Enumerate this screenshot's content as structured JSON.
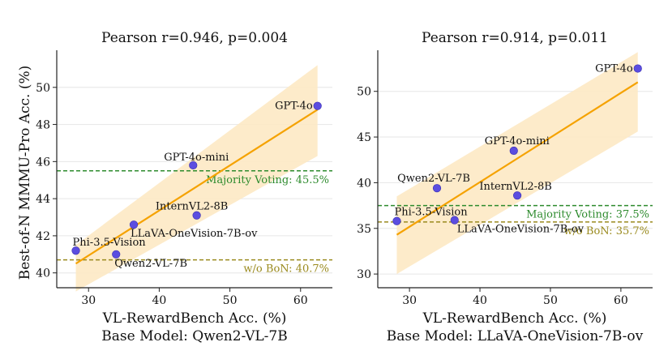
{
  "ylabel_shared": "Best-of-N MMMU-Pro Acc. (%)",
  "chart_data": [
    {
      "type": "scatter",
      "title": "Pearson r=0.946, p=0.004",
      "xlabel": "VL-RewardBench Acc. (%)",
      "subtitle": "Base Model: Qwen2-VL-7B",
      "xlim": [
        25.5,
        64.5
      ],
      "ylim": [
        39.2,
        52.0
      ],
      "xticks": [
        30,
        40,
        50,
        60
      ],
      "yticks": [
        40,
        42,
        44,
        46,
        48,
        50
      ],
      "grid": "horizontal",
      "points": [
        {
          "label": "GPT-4o",
          "x": 62.4,
          "y": 49.0
        },
        {
          "label": "GPT-4o-mini",
          "x": 44.8,
          "y": 45.8
        },
        {
          "label": "InternVL2-8B",
          "x": 45.3,
          "y": 43.1
        },
        {
          "label": "LLaVA-OneVision-7B-ov",
          "x": 36.4,
          "y": 42.6
        },
        {
          "label": "Phi-3.5-Vision",
          "x": 28.2,
          "y": 41.2
        },
        {
          "label": "Qwen2-VL-7B",
          "x": 33.9,
          "y": 41.0
        }
      ],
      "fit_line": {
        "x": [
          28.2,
          62.4
        ],
        "y": [
          40.5,
          48.8
        ]
      },
      "band": {
        "x": [
          28.2,
          62.4
        ],
        "upper": [
          41.5,
          51.2
        ],
        "lower": [
          39.0,
          46.3
        ]
      },
      "reference_lines": [
        {
          "label": "Majority Voting: 45.5%",
          "y": 45.5,
          "color": "#2e8b2e"
        },
        {
          "label": "w/o BoN: 40.7%",
          "y": 40.7,
          "color": "#9a8a1e"
        }
      ],
      "colors": {
        "points": "#5b4de0",
        "fit": "#f5a200",
        "band": "#fde9c4"
      }
    },
    {
      "type": "scatter",
      "title": "Pearson r=0.914, p=0.011",
      "xlabel": "VL-RewardBench Acc. (%)",
      "subtitle": "Base Model: LLaVA-OneVision-7B-ov",
      "xlim": [
        25.5,
        64.5
      ],
      "ylim": [
        28.5,
        54.5
      ],
      "xticks": [
        30,
        40,
        50,
        60
      ],
      "yticks": [
        30,
        35,
        40,
        45,
        50
      ],
      "grid": "horizontal",
      "points": [
        {
          "label": "GPT-4o",
          "x": 62.4,
          "y": 52.5
        },
        {
          "label": "GPT-4o-mini",
          "x": 44.8,
          "y": 43.5
        },
        {
          "label": "Qwen2-VL-7B",
          "x": 33.9,
          "y": 39.4
        },
        {
          "label": "InternVL2-8B",
          "x": 45.3,
          "y": 38.6
        },
        {
          "label": "Phi-3.5-Vision",
          "x": 28.2,
          "y": 35.8
        },
        {
          "label": "LLaVA-OneVision-7B-ov",
          "x": 36.4,
          "y": 35.9
        }
      ],
      "fit_line": {
        "x": [
          28.2,
          62.4
        ],
        "y": [
          34.3,
          51.0
        ]
      },
      "band": {
        "x": [
          28.2,
          62.4
        ],
        "upper": [
          38.5,
          54.3
        ],
        "lower": [
          30.0,
          45.6
        ]
      },
      "reference_lines": [
        {
          "label": "Majority Voting: 37.5%",
          "y": 37.5,
          "color": "#2e8b2e"
        },
        {
          "label": "w/o BoN: 35.7%",
          "y": 35.7,
          "color": "#9a8a1e"
        }
      ],
      "colors": {
        "points": "#5b4de0",
        "fit": "#f5a200",
        "band": "#fde9c4"
      }
    }
  ]
}
